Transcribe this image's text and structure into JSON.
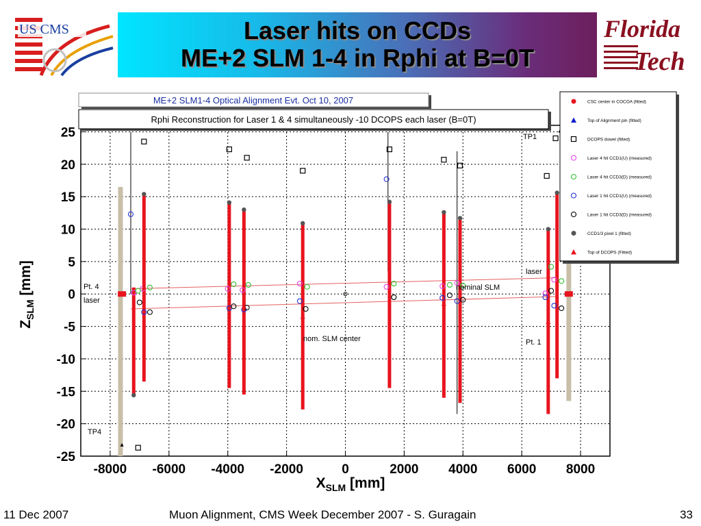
{
  "slide": {
    "title_line1": "Laser hits on CCDs",
    "title_line2": "ME+2 SLM 1-4 in Rphi at B=0T",
    "logo_left_text": "US CMS",
    "logo_right_line1": "Florida",
    "logo_right_line2": "Tech"
  },
  "footer": {
    "date": "11 Dec 2007",
    "center": "Muon Alignment, CMS Week December 2007  - S. Guragain",
    "page": "33"
  },
  "colors": {
    "bar": "#e8141e",
    "slm_line": "#e36060",
    "banner_start": "#00e5ff",
    "banner_end": "#6d1f5c"
  },
  "chart_data": {
    "type": "scatter",
    "title": "ME+2 SLM1-4 Optical Alignment Evt. Oct 10, 2007",
    "subtitle": "Rphi Reconstruction for Laser 1 & 4 simultaneously -10 DCOPS each laser (B=0T)",
    "xlabel_main": "X",
    "xlabel_sub": "SLM",
    "xlabel_unit": "[mm]",
    "ylabel_main": "Z",
    "ylabel_sub": "SLM",
    "ylabel_unit": "[mm]",
    "xlim": [
      -9000,
      9000
    ],
    "ylim": [
      -25,
      26
    ],
    "xticks": [
      -8000,
      -6000,
      -4000,
      -2000,
      0,
      2000,
      4000,
      6000,
      8000
    ],
    "yticks": [
      -25,
      -20,
      -15,
      -10,
      -5,
      0,
      5,
      10,
      15,
      20,
      25
    ],
    "grid": true,
    "legend_position": "right",
    "legend": [
      {
        "label": "CSC center in COCOA (fitted)",
        "marker": "dot",
        "color": "#e8141e"
      },
      {
        "label": "Top of Alignment pin (fitted)",
        "marker": "triangle",
        "color": "#1020c8"
      },
      {
        "label": "DCOPS dowel (fitted)",
        "marker": "square-open",
        "color": "#000000"
      },
      {
        "label": "Laser 4 hit CCD1(U) (measured)",
        "marker": "circle-open",
        "color": "#e040e0"
      },
      {
        "label": "Laser 4 hit CCD3(D) (measured)",
        "marker": "circle-open",
        "color": "#30c030"
      },
      {
        "label": "Laser 1 hit CCD1(U) (measured)",
        "marker": "circle-open",
        "color": "#2030d0"
      },
      {
        "label": "Laser 1 hit CCD3(D) (measured)",
        "marker": "circle-open",
        "color": "#000000"
      },
      {
        "label": "CCD1/3 pixel 1 (fitted)",
        "marker": "dot",
        "color": "#555555"
      },
      {
        "label": "Top of DCOPS (Fitted)",
        "marker": "triangle",
        "color": "#e8141e"
      }
    ],
    "annotations": {
      "tp1": "TP1",
      "tp4": "TP4",
      "pt4": "Pt. 4",
      "pt1": "Pt. 1",
      "laser_left": "laser",
      "laser_right": "laser",
      "nominal_slm": "nominal SLM",
      "nom_center": "nom. SLM center"
    },
    "transfer_plates": [
      {
        "x": -7650,
        "y_bottom": -25,
        "y_top": 16.5
      },
      {
        "x": 7600,
        "y_bottom": -16.5,
        "y_top": 25
      }
    ],
    "black_lines": [
      {
        "x": -7300,
        "y_bottom": 0,
        "y_top": 25
      },
      {
        "x": 1450,
        "y_bottom": 3.5,
        "y_top": 25
      },
      {
        "x": 3800,
        "y_bottom": -18.5,
        "y_top": 22
      }
    ],
    "dcops_bars": [
      {
        "x": -7200,
        "ymin": -15.5,
        "ymax": 1.0
      },
      {
        "x": -6850,
        "ymin": -13.5,
        "ymax": 15.5
      },
      {
        "x": -3950,
        "ymin": -14.5,
        "ymax": 14.0
      },
      {
        "x": -3450,
        "ymin": -15.5,
        "ymax": 13.0
      },
      {
        "x": -1450,
        "ymin": -17.8,
        "ymax": 11.0
      },
      {
        "x": 1500,
        "ymin": -14.5,
        "ymax": 14.0
      },
      {
        "x": 3350,
        "ymin": -16.0,
        "ymax": 12.5
      },
      {
        "x": 3900,
        "ymin": -16.8,
        "ymax": 11.8
      },
      {
        "x": 6900,
        "ymin": -18.5,
        "ymax": 10.0
      },
      {
        "x": 7200,
        "ymin": -13.0,
        "ymax": 15.5
      }
    ],
    "slm_lines": [
      {
        "x1": -7300,
        "y1": 0.8,
        "x2": 7200,
        "y2": 2.5
      },
      {
        "x1": -7300,
        "y1": -2.3,
        "x2": 7200,
        "y2": -0.4
      }
    ],
    "dcops_dowels": [
      {
        "x": -6850,
        "y": 23.5
      },
      {
        "x": -3950,
        "y": 22.3
      },
      {
        "x": -3350,
        "y": 21.0
      },
      {
        "x": -1450,
        "y": 19.0
      },
      {
        "x": 1500,
        "y": 22.3
      },
      {
        "x": 3350,
        "y": 20.7
      },
      {
        "x": 3900,
        "y": 19.8
      },
      {
        "x": 6850,
        "y": 18.2
      },
      {
        "x": 7150,
        "y": 24.0
      },
      {
        "x": -7050,
        "y": -23.7
      }
    ],
    "ccd_pixel_fitted": [
      {
        "x": -7200,
        "y": -15.6
      },
      {
        "x": -6850,
        "y": 15.4
      },
      {
        "x": -3950,
        "y": 14.1
      },
      {
        "x": -3450,
        "y": 13.0
      },
      {
        "x": -1450,
        "y": 10.9
      },
      {
        "x": 1500,
        "y": 14.2
      },
      {
        "x": 3350,
        "y": 12.6
      },
      {
        "x": 3900,
        "y": 11.7
      },
      {
        "x": 6900,
        "y": 10.0
      },
      {
        "x": 7200,
        "y": 15.6
      }
    ],
    "laser4_ccd1": [
      {
        "x": -7200,
        "y": 0.2
      },
      {
        "x": -6900,
        "y": 0.8
      },
      {
        "x": -4000,
        "y": 0.8
      },
      {
        "x": -3500,
        "y": 0.6
      },
      {
        "x": -1550,
        "y": 1.6
      },
      {
        "x": 1400,
        "y": 1.1
      },
      {
        "x": 3300,
        "y": 1.2
      },
      {
        "x": 3800,
        "y": 1.7
      },
      {
        "x": 6800,
        "y": 0.1
      },
      {
        "x": 7100,
        "y": 2.2
      }
    ],
    "laser4_ccd3": [
      {
        "x": -7050,
        "y": 0.5
      },
      {
        "x": -6650,
        "y": 1.0
      },
      {
        "x": -3800,
        "y": 1.5
      },
      {
        "x": -3300,
        "y": 1.4
      },
      {
        "x": -1300,
        "y": 1.1
      },
      {
        "x": 1650,
        "y": 1.6
      },
      {
        "x": 3550,
        "y": 1.4
      },
      {
        "x": 4000,
        "y": 1.3
      },
      {
        "x": 7000,
        "y": 4.2
      },
      {
        "x": 7350,
        "y": 2.0
      }
    ],
    "laser1_ccd1": [
      {
        "x": -7300,
        "y": 12.3
      },
      {
        "x": -6850,
        "y": -2.8
      },
      {
        "x": -3950,
        "y": -2.2
      },
      {
        "x": -3450,
        "y": -2.4
      },
      {
        "x": -1550,
        "y": -1.1
      },
      {
        "x": 1400,
        "y": 17.7
      },
      {
        "x": 3300,
        "y": -0.6
      },
      {
        "x": 3800,
        "y": -1.1
      },
      {
        "x": 6800,
        "y": -0.5
      },
      {
        "x": 7100,
        "y": -1.8
      }
    ],
    "laser1_ccd3": [
      {
        "x": -7000,
        "y": -1.3
      },
      {
        "x": -6650,
        "y": -2.8
      },
      {
        "x": -3800,
        "y": -1.9
      },
      {
        "x": -3350,
        "y": -2.1
      },
      {
        "x": -1350,
        "y": -2.3
      },
      {
        "x": 1650,
        "y": -0.5
      },
      {
        "x": 3550,
        "y": -0.2
      },
      {
        "x": 4000,
        "y": -0.9
      },
      {
        "x": 7000,
        "y": 0.5
      },
      {
        "x": 7350,
        "y": -2.2
      }
    ],
    "csc_centers": [
      {
        "x": -7600,
        "y": 0
      },
      {
        "x": 7600,
        "y": 0
      }
    ],
    "alignment_pins": [
      {
        "x": -7600,
        "y": -23.3
      },
      {
        "x": 7300,
        "y": 25.1
      }
    ],
    "dcops_tops": [
      {
        "x": -6850,
        "y": 1.0
      },
      {
        "x": -3450,
        "y": -2.0
      },
      {
        "x": -1450,
        "y": -3.5
      },
      {
        "x": 3350,
        "y": -1.5
      },
      {
        "x": 6900,
        "y": -4.3
      }
    ],
    "nominal_center": {
      "x": 0,
      "y": 0
    }
  }
}
